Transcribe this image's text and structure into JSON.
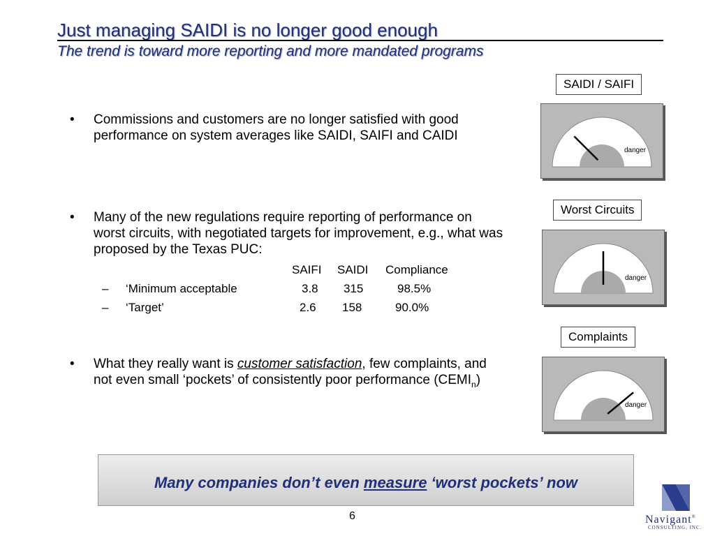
{
  "header": {
    "title": "Just managing SAIDI is no longer good enough",
    "subtitle": "The trend is toward more reporting and more mandated programs"
  },
  "bullets": [
    {
      "marker": "•",
      "text": "Commissions and customers are no longer satisfied with good performance on system averages like SAIDI, SAIFI and CAIDI"
    },
    {
      "marker": "•",
      "text": "Many of the new regulations require reporting of performance on worst circuits, with negotiated targets for improvement, e.g., what was proposed by the Texas PUC:"
    },
    {
      "marker": "•",
      "text_before": "What they really want is ",
      "emphasis": "customer satisfaction",
      "text_after": ", few complaints, and not even small ‘pockets’ of consistently poor performance (CEMI",
      "subscript": "n",
      "text_end": ")"
    }
  ],
  "targets_table": {
    "headers": [
      "SAIFI",
      "SAIDI",
      "Compliance"
    ],
    "rows": [
      {
        "dash": "–",
        "label": "‘Minimum acceptable",
        "saifi": "3.8",
        "saidi": "315",
        "compliance": "98.5%"
      },
      {
        "dash": "–",
        "label": "‘Target’",
        "saifi": "2.6",
        "saidi": "158",
        "compliance": "90.0%"
      }
    ]
  },
  "gauges": [
    {
      "label": "SAIDI / SAIFI",
      "zone_label": "danger",
      "needle_level": 0.25
    },
    {
      "label": "Worst Circuits",
      "zone_label": "danger",
      "needle_level": 0.5
    },
    {
      "label": "Complaints",
      "zone_label": "danger",
      "needle_level": 0.78
    }
  ],
  "banner": {
    "text_before": "Many companies don’t even ",
    "emphasis": "measure",
    "text_after": " ‘worst pockets’ now"
  },
  "footer": {
    "page_number": "6",
    "logo_name": "Navigant",
    "logo_trademark": "®",
    "logo_tagline": "CONSULTING, INC."
  },
  "colors": {
    "title": "#1f2f7a",
    "gauge_panel": "#b9b9b9",
    "gauge_face": "#ffffff",
    "gauge_hub": "#aaaaaa"
  }
}
